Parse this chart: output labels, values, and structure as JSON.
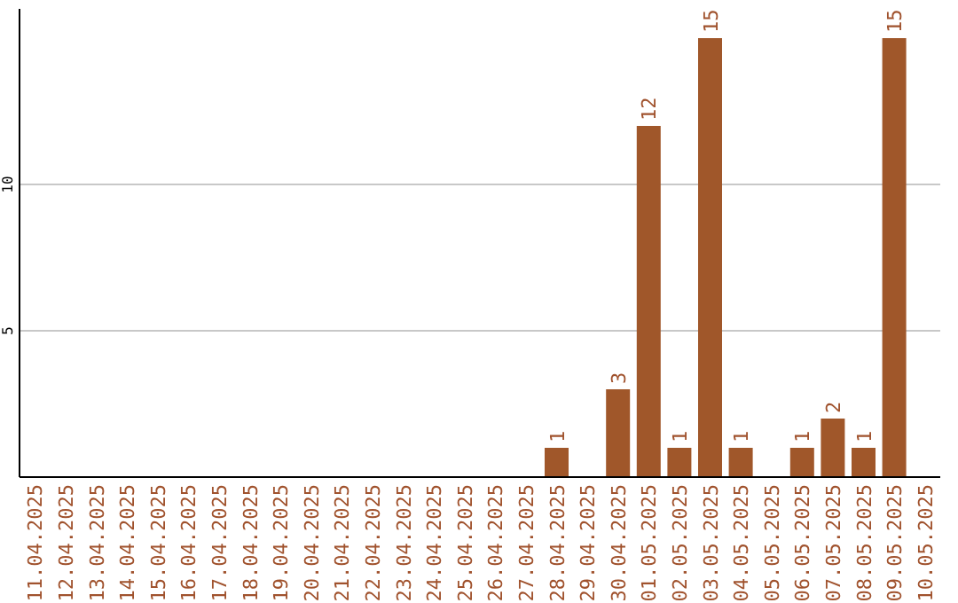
{
  "chart_data": {
    "type": "bar",
    "categories": [
      "11.04.2025",
      "12.04.2025",
      "13.04.2025",
      "14.04.2025",
      "15.04.2025",
      "16.04.2025",
      "17.04.2025",
      "18.04.2025",
      "19.04.2025",
      "20.04.2025",
      "21.04.2025",
      "22.04.2025",
      "23.04.2025",
      "24.04.2025",
      "25.04.2025",
      "26.04.2025",
      "27.04.2025",
      "28.04.2025",
      "29.04.2025",
      "30.04.2025",
      "01.05.2025",
      "02.05.2025",
      "03.05.2025",
      "04.05.2025",
      "05.05.2025",
      "06.05.2025",
      "07.05.2025",
      "08.05.2025",
      "09.05.2025",
      "10.05.2025"
    ],
    "values": [
      0,
      0,
      0,
      0,
      0,
      0,
      0,
      0,
      0,
      0,
      0,
      0,
      0,
      0,
      0,
      0,
      0,
      1,
      0,
      3,
      12,
      1,
      15,
      1,
      0,
      1,
      2,
      1,
      15,
      0
    ],
    "value_labels": [
      null,
      null,
      null,
      null,
      null,
      null,
      null,
      null,
      null,
      null,
      null,
      null,
      null,
      null,
      null,
      null,
      null,
      "1",
      null,
      "3",
      "12",
      "1",
      "15",
      "1",
      null,
      "1",
      "2",
      "1",
      "15",
      null
    ],
    "color": "#a0572a",
    "ylim": [
      0,
      16
    ],
    "yticks": [
      5,
      10
    ],
    "grid": "y"
  }
}
